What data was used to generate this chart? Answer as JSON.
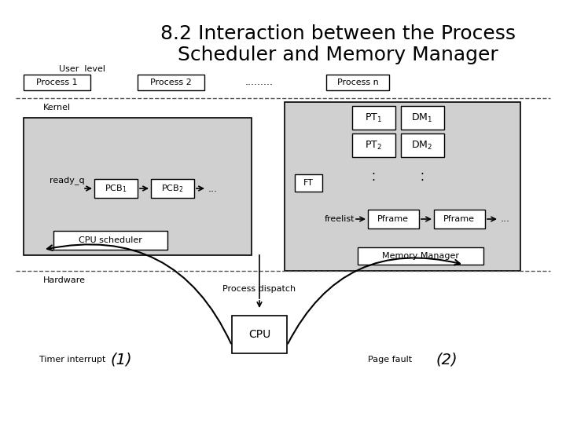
{
  "title_line1": "8.2 Interaction between the Process",
  "title_line2": "Scheduler and Memory Manager",
  "title_fontsize": 18,
  "bg_color": "#ffffff",
  "gray_color": "#d0d0d0",
  "text_color": "#000000",
  "dashed_color": "#555555",
  "user_level_label": "User  level",
  "kernel_label": "Kernel",
  "hardware_label": "Hardware",
  "process_dispatch_label": "Process dispatch",
  "timer_interrupt_label": "Timer interrupt",
  "page_fault_label": "Page fault"
}
